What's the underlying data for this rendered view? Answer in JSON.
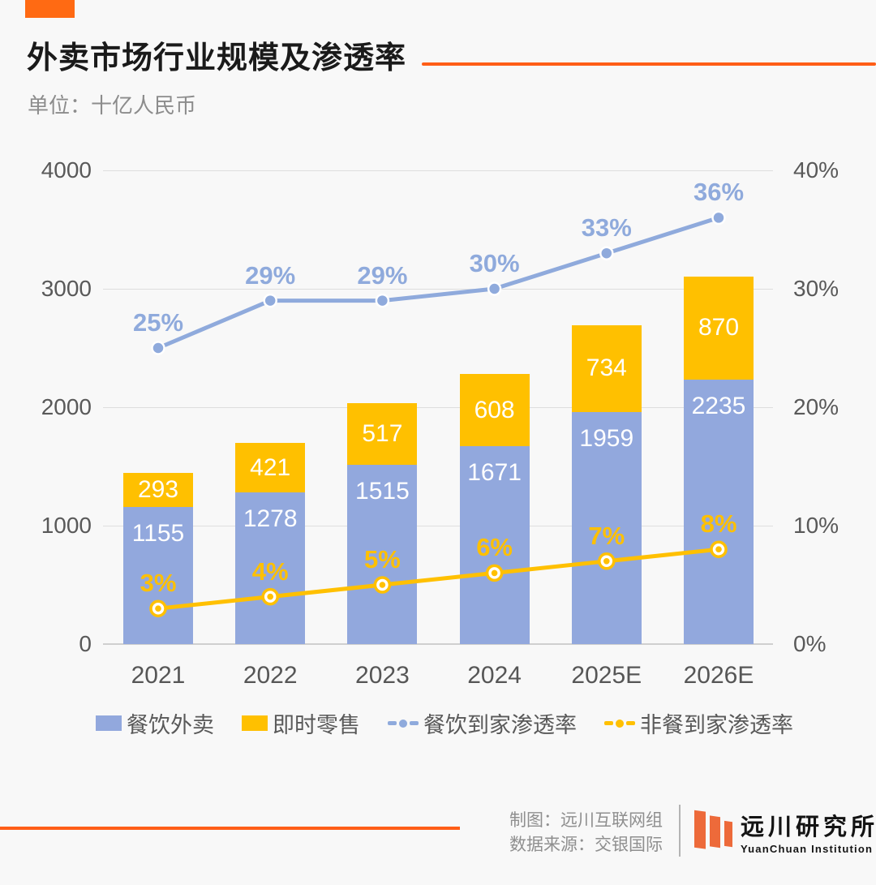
{
  "header": {
    "title": "外卖市场行业规模及渗透率",
    "subtitle": "单位：十亿人民币",
    "accent_color": "#ff5e17"
  },
  "chart_data": {
    "type": "bar",
    "subtype": "stacked-bar-with-lines",
    "categories": [
      "2021",
      "2022",
      "2023",
      "2024",
      "2025E",
      "2026E"
    ],
    "series": [
      {
        "name": "餐饮外卖",
        "type": "bar",
        "stack": "total",
        "color": "#92a8dd",
        "values": [
          1155,
          1278,
          1515,
          1671,
          1959,
          2235
        ]
      },
      {
        "name": "即时零售",
        "type": "bar",
        "stack": "total",
        "color": "#ffc000",
        "values": [
          293,
          421,
          517,
          608,
          734,
          870
        ]
      },
      {
        "name": "餐饮到家渗透率",
        "type": "line",
        "axis": "right",
        "color": "#8faadc",
        "values": [
          25,
          29,
          29,
          30,
          33,
          36
        ],
        "labels": [
          "25%",
          "29%",
          "29%",
          "30%",
          "33%",
          "36%"
        ]
      },
      {
        "name": "非餐到家渗透率",
        "type": "line",
        "axis": "right",
        "color": "#ffc000",
        "values": [
          3,
          4,
          5,
          6,
          7,
          8
        ],
        "labels": [
          "3%",
          "4%",
          "5%",
          "6%",
          "7%",
          "8%"
        ]
      }
    ],
    "left_axis": {
      "title": "",
      "ticks": [
        4000,
        3000,
        2000,
        1000,
        0
      ],
      "min": 0,
      "max": 4000
    },
    "right_axis": {
      "title": "",
      "ticks": [
        "40%",
        "30%",
        "20%",
        "10%",
        "0%"
      ],
      "tick_values": [
        40,
        30,
        20,
        10,
        0
      ],
      "min": 0,
      "max": 40
    },
    "grid": true,
    "legend_position": "bottom",
    "title": "外卖市场行业规模及渗透率",
    "xlabel": "",
    "ylabel": "十亿人民币"
  },
  "legend": {
    "items": [
      {
        "label": "餐饮外卖",
        "marker": "square",
        "color": "#92a8dd"
      },
      {
        "label": "即时零售",
        "marker": "square",
        "color": "#ffc000"
      },
      {
        "label": "餐饮到家渗透率",
        "marker": "dash-dot",
        "color": "#8faadc"
      },
      {
        "label": "非餐到家渗透率",
        "marker": "dash-dot",
        "color": "#ffc000"
      }
    ]
  },
  "footer": {
    "credit_line1": "制图：远川互联网组",
    "credit_line2": "数据来源：交银国际",
    "logo_name": "远川研究所",
    "logo_subtext": "YuanChuan Institution"
  }
}
